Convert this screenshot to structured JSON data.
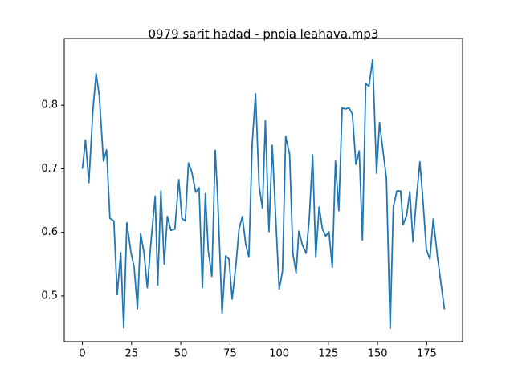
{
  "chart_data": {
    "type": "line",
    "title": "0979 sarit hadad - pnoia leahava.mp3",
    "x": [
      0,
      1.6,
      3.3,
      5.3,
      7,
      8.6,
      10.7,
      12.3,
      14,
      16,
      17.7,
      19.5,
      21,
      22.6,
      24.7,
      26.3,
      28,
      29.6,
      31.3,
      33,
      35,
      37,
      38.3,
      39.9,
      41.6,
      43.2,
      45,
      47,
      49,
      50.6,
      52.3,
      53.9,
      55.6,
      57.6,
      59.3,
      61,
      62.5,
      64,
      65.8,
      67.5,
      68.8,
      71,
      72.8,
      74.5,
      76.1,
      78,
      79.6,
      81.3,
      83,
      84.6,
      86.3,
      88,
      89.8,
      91.5,
      93,
      94.8,
      96.5,
      98.2,
      100,
      101.7,
      103.3,
      105.3,
      107,
      108.6,
      110,
      111.8,
      113.7,
      115.3,
      117,
      118.6,
      120.3,
      122,
      123.7,
      125.3,
      127,
      128.6,
      130.3,
      132,
      133.6,
      135.5,
      137.2,
      139,
      140.7,
      142.3,
      144,
      145.6,
      147.5,
      149.5,
      151,
      152.8,
      154.5,
      156.4,
      158,
      159.8,
      161.7,
      163,
      164.8,
      166.4,
      168,
      169.8,
      171.5,
      173,
      174.8,
      176.6,
      178.3,
      180.5,
      184
    ],
    "series": [
      {
        "color": "#1f77b4",
        "values": [
          0.7,
          0.745,
          0.678,
          0.79,
          0.85,
          0.815,
          0.712,
          0.73,
          0.622,
          0.618,
          0.502,
          0.568,
          0.45,
          0.615,
          0.568,
          0.545,
          0.48,
          0.598,
          0.568,
          0.513,
          0.59,
          0.657,
          0.517,
          0.665,
          0.55,
          0.625,
          0.603,
          0.605,
          0.683,
          0.622,
          0.618,
          0.709,
          0.695,
          0.663,
          0.67,
          0.513,
          0.661,
          0.57,
          0.531,
          0.729,
          0.652,
          0.472,
          0.563,
          0.558,
          0.495,
          0.548,
          0.605,
          0.625,
          0.581,
          0.561,
          0.74,
          0.818,
          0.673,
          0.638,
          0.776,
          0.601,
          0.737,
          0.626,
          0.511,
          0.539,
          0.751,
          0.723,
          0.566,
          0.536,
          0.602,
          0.58,
          0.567,
          0.622,
          0.722,
          0.561,
          0.64,
          0.605,
          0.594,
          0.601,
          0.545,
          0.712,
          0.634,
          0.796,
          0.794,
          0.796,
          0.786,
          0.707,
          0.728,
          0.588,
          0.834,
          0.83,
          0.872,
          0.693,
          0.773,
          0.727,
          0.685,
          0.449,
          0.64,
          0.665,
          0.665,
          0.612,
          0.627,
          0.664,
          0.585,
          0.655,
          0.711,
          0.653,
          0.573,
          0.558,
          0.621,
          0.56,
          0.479
        ]
      }
    ],
    "xlim": [
      -9.2,
      193.2
    ],
    "xticks": [
      0,
      25,
      50,
      75,
      100,
      125,
      150,
      175
    ],
    "ylim": [
      0.428,
      0.905
    ],
    "yticks": [
      0.5,
      0.6,
      0.7,
      0.8
    ]
  }
}
